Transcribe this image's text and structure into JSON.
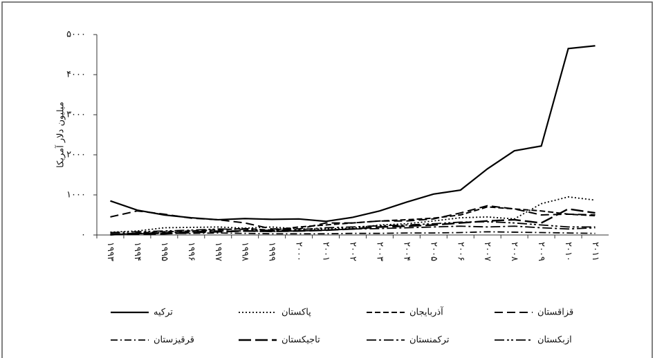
{
  "chart_data": {
    "type": "line",
    "y_label": "میلیون دلار آمریکا",
    "categories": [
      "۱۹۹۳",
      "۱۹۹۴",
      "۱۹۹۵",
      "۱۹۹۶",
      "۱۹۹۷",
      "۱۹۹۸",
      "۱۹۹۹",
      "۲۰۰۰",
      "۲۰۰۱",
      "۲۰۰۲",
      "۲۰۰۳",
      "۲۰۰۴",
      "۲۰۰۵",
      "۲۰۰۶",
      "۲۰۰۷",
      "۲۰۰۸",
      "۲۰۰۹",
      "۲۰۱۰",
      "۲۰۱۱"
    ],
    "ylim": [
      0,
      5000
    ],
    "yticks": [
      {
        "value": 0,
        "label": "۰"
      },
      {
        "value": 1000,
        "label": "۱۰۰۰"
      },
      {
        "value": 2000,
        "label": "۲۰۰۰"
      },
      {
        "value": 3000,
        "label": "۳۰۰۰"
      },
      {
        "value": 4000,
        "label": "۴۰۰۰"
      },
      {
        "value": 5000,
        "label": "۵۰۰۰"
      }
    ],
    "grid": false,
    "series": [
      {
        "name": "ترکیه",
        "color": "#000000",
        "values": [
          850,
          620,
          500,
          430,
          380,
          410,
          390,
          400,
          340,
          440,
          600,
          820,
          1020,
          1120,
          1650,
          2100,
          2220,
          4650,
          4720
        ]
      },
      {
        "name": "پاکستان",
        "color": "#000000",
        "values": [
          70,
          100,
          180,
          190,
          200,
          170,
          200,
          150,
          150,
          170,
          250,
          280,
          350,
          430,
          450,
          400,
          780,
          950,
          870
        ]
      },
      {
        "name": "آذربایجان",
        "color": "#000000",
        "values": [
          0,
          50,
          80,
          100,
          130,
          160,
          120,
          200,
          250,
          300,
          350,
          380,
          420,
          500,
          700,
          650,
          600,
          520,
          480
        ]
      },
      {
        "name": "قزاقستان",
        "color": "#000000",
        "values": [
          450,
          600,
          520,
          420,
          380,
          300,
          150,
          150,
          300,
          300,
          350,
          350,
          400,
          550,
          730,
          650,
          500,
          520,
          500
        ]
      },
      {
        "name": "قرقیزستان",
        "color": "#000000",
        "values": [
          20,
          30,
          40,
          40,
          50,
          40,
          30,
          30,
          30,
          40,
          40,
          50,
          50,
          60,
          80,
          70,
          60,
          50,
          40
        ]
      },
      {
        "name": "تاجیکستان",
        "color": "#000000",
        "values": [
          10,
          20,
          30,
          60,
          80,
          100,
          90,
          100,
          120,
          150,
          200,
          220,
          250,
          300,
          350,
          380,
          300,
          650,
          550
        ]
      },
      {
        "name": "ترکمنستان",
        "color": "#000000",
        "values": [
          30,
          40,
          60,
          80,
          100,
          100,
          90,
          100,
          120,
          150,
          160,
          180,
          200,
          220,
          200,
          220,
          180,
          150,
          180
        ]
      },
      {
        "name": "ازبکستان",
        "color": "#000000",
        "values": [
          60,
          80,
          100,
          120,
          150,
          140,
          110,
          130,
          180,
          200,
          230,
          250,
          280,
          320,
          330,
          300,
          250,
          200,
          200
        ]
      }
    ]
  }
}
